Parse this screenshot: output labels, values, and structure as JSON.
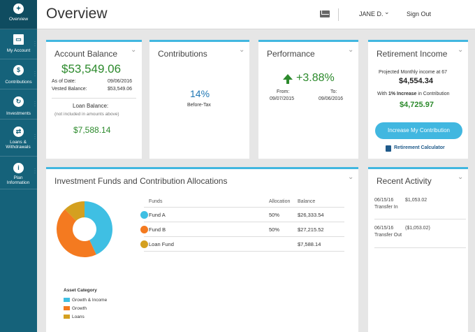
{
  "sidebar": {
    "items": [
      {
        "label": "Overview",
        "icon": "compass-icon",
        "glyph": "✦"
      },
      {
        "label": "My Account",
        "icon": "chart-icon",
        "glyph": "▭"
      },
      {
        "label": "Contributions",
        "icon": "dollar-icon",
        "glyph": "$"
      },
      {
        "label": "Investments",
        "icon": "refresh-icon",
        "glyph": "↻"
      },
      {
        "label": "Loans & Withdrawals",
        "icon": "handshake-icon",
        "glyph": "⇄"
      },
      {
        "label": "Plan Information",
        "icon": "info-icon",
        "glyph": "i"
      }
    ]
  },
  "header": {
    "title": "Overview",
    "user": "JANE D.",
    "sign_out": "Sign Out"
  },
  "account_balance": {
    "title": "Account Balance",
    "balance": "$53,549.06",
    "as_of_label": "As of Date:",
    "as_of_value": "09/06/2016",
    "vested_label": "Vested Balance:",
    "vested_value": "$53,549.06",
    "loan_label": "Loan Balance:",
    "loan_note": "(not included in amounts above)",
    "loan_value": "$7,588.14"
  },
  "contributions": {
    "title": "Contributions",
    "rate": "14%",
    "type": "Before-Tax"
  },
  "performance": {
    "title": "Performance",
    "value": "+3.88%",
    "from_label": "From:",
    "from_date": "09/07/2015",
    "to_label": "To:",
    "to_date": "09/06/2016"
  },
  "retirement": {
    "title": "Retirement Income",
    "projected_label": "Projected Monthly income at 67",
    "projected_value": "$4,554.34",
    "increase_prefix": "With ",
    "increase_bold": "1% Increase",
    "increase_suffix": " in Contribution",
    "increase_value": "$4,725.97",
    "button": "Increase My Contribution",
    "calculator": "Retirement Calculator"
  },
  "investments": {
    "title": "Investment Funds and Contribution Allocations",
    "columns": {
      "funds": "Funds",
      "allocation": "Allocation",
      "balance": "Balance"
    },
    "funds": [
      {
        "name": "Fund A",
        "allocation": "50%",
        "balance": "$26,333.54",
        "color": "#3fbfe3"
      },
      {
        "name": "Fund B",
        "allocation": "50%",
        "balance": "$27,215.52",
        "color": "#f47a20"
      },
      {
        "name": "Loan Fund",
        "allocation": "",
        "balance": "$7,588.14",
        "color": "#d4a020"
      }
    ],
    "donut": [
      {
        "label": "Fund A",
        "value": 26333.54,
        "color": "#3fbfe3"
      },
      {
        "label": "Fund B",
        "value": 27215.52,
        "color": "#f47a20"
      },
      {
        "label": "Loan Fund",
        "value": 7588.14,
        "color": "#d4a020"
      }
    ],
    "legend_title": "Asset Category",
    "legend": [
      {
        "label": "Growth & Income",
        "color": "#3fbfe3"
      },
      {
        "label": "Growth",
        "color": "#f47a20"
      },
      {
        "label": "Loans",
        "color": "#d4a020"
      }
    ]
  },
  "activity": {
    "title": "Recent Activity",
    "items": [
      {
        "date": "06/15/16",
        "amount": "$1,053.02",
        "type": "Transfer In"
      },
      {
        "date": "06/15/16",
        "amount": "($1,053.02)",
        "type": "Transfer Out"
      }
    ]
  }
}
